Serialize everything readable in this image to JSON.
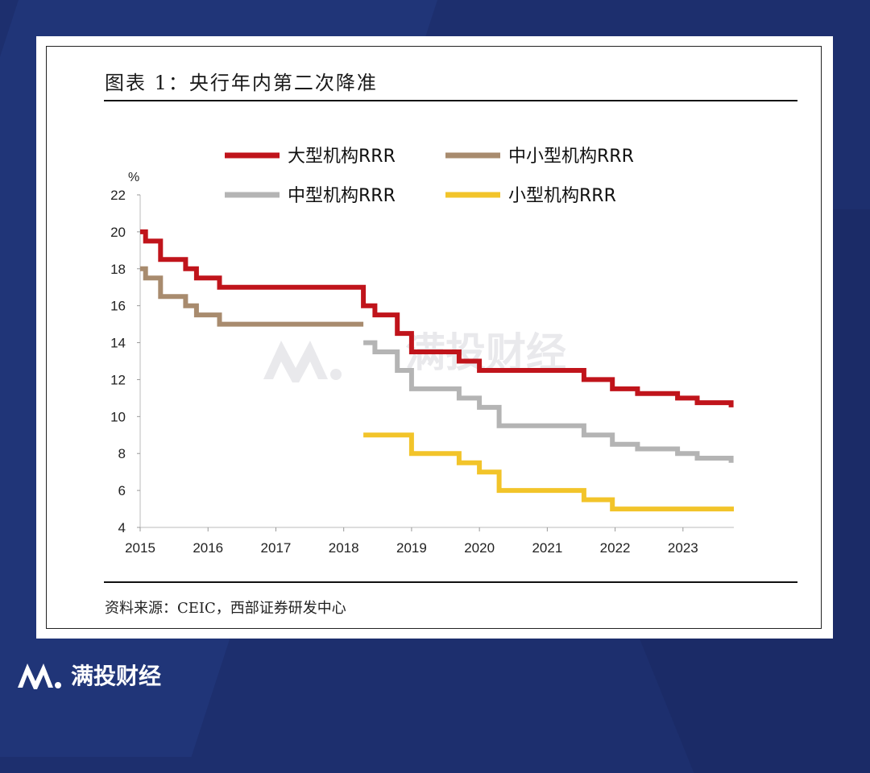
{
  "figure": {
    "title": "图表 1：央行年内第二次降准",
    "source": "资料来源：CEIC，西部证券研发中心"
  },
  "watermark": {
    "text": "满投财经"
  },
  "footer": {
    "brand": "满投财经"
  },
  "chart_data": {
    "type": "line",
    "y_unit": "%",
    "ylim": [
      4,
      22
    ],
    "yticks": [
      4,
      6,
      8,
      10,
      12,
      14,
      16,
      18,
      20,
      22
    ],
    "xlim": [
      2015.0,
      2023.75
    ],
    "xticks": [
      "2015",
      "2016",
      "2017",
      "2018",
      "2019",
      "2020",
      "2021",
      "2022",
      "2023"
    ],
    "grid": false,
    "legend": "top",
    "step": true,
    "series": [
      {
        "name": "大型机构RRR",
        "color": "#c0141b",
        "points": [
          [
            2015.0,
            20.0
          ],
          [
            2015.08,
            19.5
          ],
          [
            2015.3,
            18.5
          ],
          [
            2015.67,
            18.0
          ],
          [
            2015.83,
            17.5
          ],
          [
            2016.17,
            17.0
          ],
          [
            2018.29,
            16.0
          ],
          [
            2018.46,
            15.5
          ],
          [
            2018.79,
            14.5
          ],
          [
            2019.0,
            13.5
          ],
          [
            2019.7,
            13.0
          ],
          [
            2020.0,
            12.5
          ],
          [
            2021.54,
            12.0
          ],
          [
            2021.96,
            11.5
          ],
          [
            2022.33,
            11.25
          ],
          [
            2022.92,
            11.0
          ],
          [
            2023.21,
            10.75
          ],
          [
            2023.71,
            10.5
          ]
        ]
      },
      {
        "name": "中小型机构RRR",
        "color": "#a88b6e",
        "points": [
          [
            2015.0,
            18.0
          ],
          [
            2015.08,
            17.5
          ],
          [
            2015.3,
            16.5
          ],
          [
            2015.67,
            16.0
          ],
          [
            2015.83,
            15.5
          ],
          [
            2016.17,
            15.0
          ],
          [
            2018.29,
            15.0
          ]
        ]
      },
      {
        "name": "中型机构RRR",
        "color": "#b4b4b4",
        "points": [
          [
            2018.29,
            14.0
          ],
          [
            2018.46,
            13.5
          ],
          [
            2018.79,
            12.5
          ],
          [
            2019.0,
            11.5
          ],
          [
            2019.7,
            11.0
          ],
          [
            2020.0,
            10.5
          ],
          [
            2020.29,
            9.5
          ],
          [
            2021.54,
            9.0
          ],
          [
            2021.96,
            8.5
          ],
          [
            2022.33,
            8.25
          ],
          [
            2022.92,
            8.0
          ],
          [
            2023.21,
            7.75
          ],
          [
            2023.71,
            7.5
          ]
        ]
      },
      {
        "name": "小型机构RRR",
        "color": "#f2c42a",
        "points": [
          [
            2018.29,
            9.0
          ],
          [
            2019.0,
            8.0
          ],
          [
            2019.7,
            7.5
          ],
          [
            2020.0,
            7.0
          ],
          [
            2020.29,
            6.0
          ],
          [
            2021.54,
            5.5
          ],
          [
            2021.96,
            5.0
          ],
          [
            2023.75,
            5.0
          ]
        ]
      }
    ]
  }
}
